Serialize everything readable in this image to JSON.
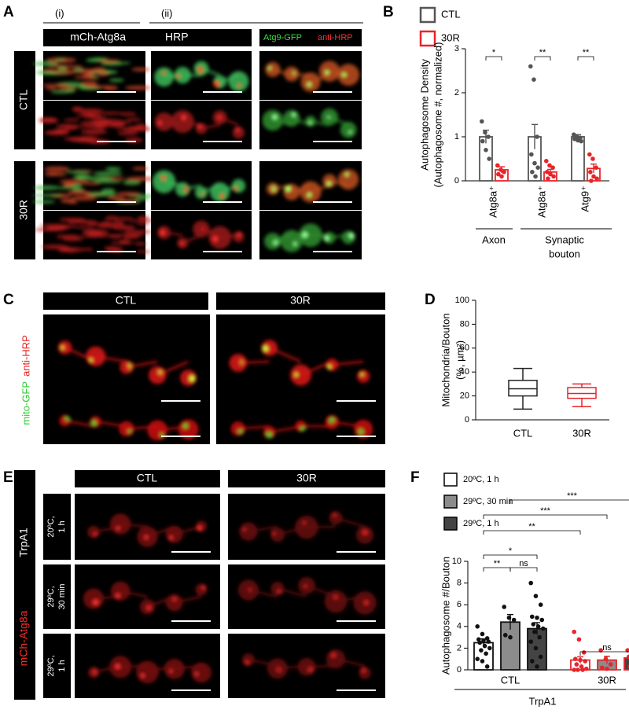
{
  "panel_labels": [
    "A",
    "B",
    "C",
    "D",
    "E",
    "F"
  ],
  "panel_a": {
    "column_labels": [
      "(i)",
      "(ii)"
    ],
    "header_left": [
      "mCh-Atg8a",
      "HRP"
    ],
    "header_right": [
      "Atg9-GFP",
      "anti-HRP"
    ],
    "row_labels": [
      "CTL",
      "30R"
    ]
  },
  "panel_c": {
    "column_labels": [
      "CTL",
      "30R"
    ],
    "side_label": [
      "mito-GFP",
      "anti-HRP"
    ]
  },
  "panel_e": {
    "column_labels": [
      "CTL",
      "30R"
    ],
    "side_label": [
      "TrpA1",
      "mCh-Atg8a"
    ],
    "row_labels": [
      [
        "20ºC,",
        "1 h"
      ],
      [
        "29ºC,",
        "30 min"
      ],
      [
        "29ºC,",
        "1 h"
      ]
    ]
  },
  "chart_data": [
    {
      "type": "bar",
      "y_label": [
        "Autophagosome Density",
        "(Autophagosome #, normalized)"
      ],
      "categories": [
        "Atg8a⁺",
        "Atg8a⁺",
        "Atg9⁺"
      ],
      "group_labels": [
        [
          "Axon"
        ],
        [
          "Synaptic",
          "bouton"
        ]
      ],
      "series": [
        {
          "name": "CTL",
          "color": "#555555",
          "values": [
            1.0,
            1.0,
            1.0
          ],
          "errors": [
            0.15,
            0.28,
            0.05
          ],
          "points": [
            [
              1.35,
              1.1,
              1.0,
              0.9,
              0.7,
              0.5
            ],
            [
              2.6,
              2.3,
              1.0,
              0.6,
              0.4,
              0.3,
              0.2,
              0.1
            ],
            [
              1.05,
              1.0,
              0.98,
              0.95,
              0.92,
              0.9
            ]
          ]
        },
        {
          "name": "30R",
          "color": "#e8242a",
          "values": [
            0.25,
            0.2,
            0.28
          ],
          "errors": [
            0.07,
            0.06,
            0.1
          ],
          "points": [
            [
              0.35,
              0.25,
              0.2,
              0.15,
              0.1
            ],
            [
              0.45,
              0.35,
              0.3,
              0.2,
              0.15,
              0.1,
              0.05
            ],
            [
              0.6,
              0.5,
              0.3,
              0.2,
              0.1,
              0.05,
              0.0
            ]
          ]
        }
      ],
      "ylim": [
        0,
        3
      ],
      "yticks": [
        0,
        1,
        2,
        3
      ],
      "annotations": [
        "*",
        "**",
        "**"
      ]
    },
    {
      "type": "box",
      "y_label": [
        "Mitochondria/Bouton",
        "(%, µm²)"
      ],
      "categories": [
        "CTL",
        "30R"
      ],
      "colors": [
        "#222222",
        "#e8242a"
      ],
      "min": [
        9,
        11
      ],
      "q1": [
        20,
        18
      ],
      "median": [
        26,
        22
      ],
      "q3": [
        33,
        27
      ],
      "max": [
        43,
        30
      ],
      "ylim": [
        0,
        100
      ],
      "yticks": [
        0,
        20,
        40,
        60,
        80,
        100
      ]
    },
    {
      "type": "bar",
      "y_label": "Autophagosome #/Bouton",
      "x_label": "TrpA1",
      "categories": [
        "CTL",
        "30R"
      ],
      "category_colors": [
        "#111111",
        "#e8242a"
      ],
      "series": [
        {
          "name": "20ºC, 1 h",
          "color": "#ffffff",
          "values": [
            2.5,
            0.9
          ],
          "errors": [
            0.35,
            0.3
          ],
          "points": [
            [
              4.0,
              3.3,
              2.9,
              2.8,
              2.7,
              2.6,
              2.5,
              2.2,
              2.0,
              1.8,
              1.5,
              1.0,
              0.8,
              0.3
            ],
            [
              3.5,
              2.8,
              1.6,
              1.0,
              0.9,
              0.8,
              0.5,
              0.3,
              0.1,
              0.0,
              0.0,
              0.0
            ]
          ]
        },
        {
          "name": "29ºC, 30 min",
          "color": "#8c8c8c",
          "values": [
            4.4,
            0.9
          ],
          "errors": [
            0.7,
            0.35
          ],
          "points": [
            [
              5.8,
              4.8,
              4.6,
              3.2,
              3.0
            ],
            [
              1.8,
              1.0,
              0.5,
              0.2,
              0.1
            ]
          ]
        },
        {
          "name": "29ºC, 1 h",
          "color": "#444444",
          "values": [
            3.8,
            1.1
          ],
          "errors": [
            0.55,
            0.3
          ],
          "points": [
            [
              8.0,
              6.8,
              6.0,
              4.9,
              4.8,
              4.6,
              4.2,
              4.0,
              3.8,
              3.5,
              3.0,
              2.6,
              2.0,
              1.2,
              0.8,
              0.3
            ],
            [
              1.8,
              1.8,
              1.6,
              1.2,
              1.0,
              0.8,
              0.3,
              0.2,
              0.1,
              0.0
            ]
          ]
        }
      ],
      "ylim": [
        0,
        10
      ],
      "yticks": [
        0,
        2,
        4,
        6,
        8,
        10
      ],
      "annotations": [
        "***",
        "***",
        "**",
        "*",
        "**",
        "ns",
        "ns"
      ]
    }
  ]
}
